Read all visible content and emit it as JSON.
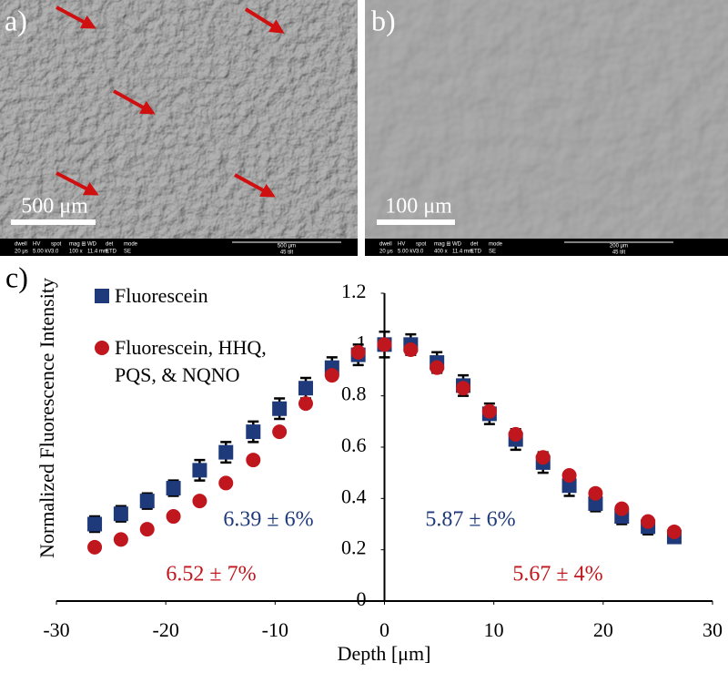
{
  "panels": [
    {
      "label": "a)",
      "scale_bar": "500 μm",
      "info": {
        "fields": [
          {
            "name": "dwell",
            "value": "20 μs"
          },
          {
            "name": "HV",
            "value": "5.00 kV"
          },
          {
            "name": "spot",
            "value": "3.0"
          },
          {
            "name": "mag ⊞",
            "value": "100 x"
          },
          {
            "name": "WD",
            "value": "11.4 mm"
          },
          {
            "name": "det",
            "value": "ETD"
          },
          {
            "name": "mode",
            "value": "SE"
          }
        ],
        "bar": "500 μm",
        "tilt": "45 tilt"
      }
    },
    {
      "label": "b)",
      "scale_bar": "100 μm",
      "info": {
        "fields": [
          {
            "name": "dwell",
            "value": "20 μs"
          },
          {
            "name": "HV",
            "value": "5.00 kV"
          },
          {
            "name": "spot",
            "value": "3.0"
          },
          {
            "name": "mag ⊞",
            "value": "400 x"
          },
          {
            "name": "WD",
            "value": "11.4 mm"
          },
          {
            "name": "det",
            "value": "ETD"
          },
          {
            "name": "mode",
            "value": "SE"
          }
        ],
        "bar": "200 μm",
        "tilt": "45 tilt"
      }
    }
  ],
  "chart_data": {
    "type": "scatter",
    "panel_label": "c)",
    "xlabel": "Depth [μm]",
    "ylabel": "Normalized Fluorescence Intensity",
    "xlim": [
      -30,
      30
    ],
    "xticks": [
      -30,
      -20,
      -10,
      0,
      10,
      20,
      30
    ],
    "ylim": [
      0,
      1.2
    ],
    "yticks": [
      0,
      0.2,
      0.4,
      0.6,
      0.8,
      1,
      1.2
    ],
    "x": [
      -26.5,
      -24.1,
      -21.7,
      -19.3,
      -16.9,
      -14.5,
      -12.0,
      -9.6,
      -7.2,
      -4.8,
      -2.4,
      0,
      2.4,
      4.8,
      7.2,
      9.6,
      12.0,
      14.5,
      16.9,
      19.3,
      21.7,
      24.1,
      26.5
    ],
    "series": [
      {
        "name": "Fluorescein",
        "color": "#1f3a7a",
        "marker": "square",
        "values": [
          0.3,
          0.34,
          0.39,
          0.44,
          0.51,
          0.58,
          0.66,
          0.75,
          0.83,
          0.91,
          0.96,
          1.0,
          1.0,
          0.93,
          0.84,
          0.73,
          0.63,
          0.54,
          0.45,
          0.38,
          0.33,
          0.29,
          0.25
        ],
        "errors": [
          0.03,
          0.03,
          0.03,
          0.03,
          0.04,
          0.04,
          0.04,
          0.04,
          0.04,
          0.04,
          0.04,
          0.05,
          0.04,
          0.04,
          0.04,
          0.04,
          0.04,
          0.04,
          0.04,
          0.03,
          0.03,
          0.03,
          0.02
        ]
      },
      {
        "name": "Fluorescein, HHQ, PQS, & NQNO",
        "color": "#c0161e",
        "marker": "circle",
        "values": [
          0.21,
          0.24,
          0.28,
          0.33,
          0.39,
          0.46,
          0.55,
          0.66,
          0.77,
          0.88,
          0.97,
          1.0,
          0.98,
          0.91,
          0.83,
          0.74,
          0.65,
          0.56,
          0.49,
          0.42,
          0.36,
          0.31,
          0.27
        ]
      }
    ],
    "annotations": [
      {
        "text": "6.39 ± 6%",
        "color": "#1f3a7a"
      },
      {
        "text": "6.52 ± 7%",
        "color": "#c0161e"
      },
      {
        "text": "5.87 ± 6%",
        "color": "#1f3a7a"
      },
      {
        "text": "5.67 ± 4%",
        "color": "#c0161e"
      }
    ]
  }
}
